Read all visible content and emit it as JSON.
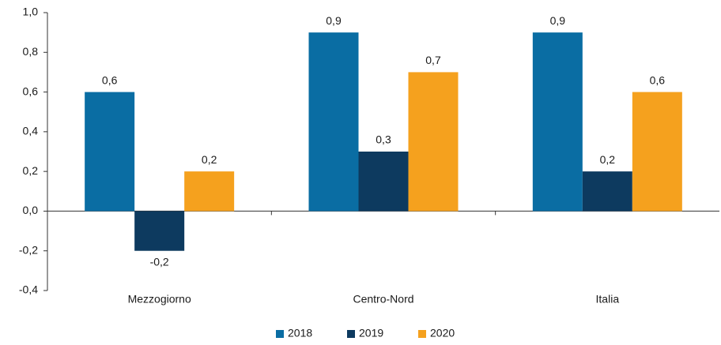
{
  "chart_data": {
    "type": "bar",
    "categories": [
      "Mezzogiorno",
      "Centro-Nord",
      "Italia"
    ],
    "series": [
      {
        "name": "2018",
        "color": "#0a6da3",
        "values": [
          0.6,
          0.9,
          0.9
        ],
        "value_labels": [
          "0,6",
          "0,9",
          "0,9"
        ]
      },
      {
        "name": "2019",
        "color": "#0d3a5f",
        "values": [
          -0.2,
          0.3,
          0.2
        ],
        "value_labels": [
          "-0,2",
          "0,3",
          "0,2"
        ]
      },
      {
        "name": "2020",
        "color": "#f5a11e",
        "values": [
          0.2,
          0.7,
          0.6
        ],
        "value_labels": [
          "0,2",
          "0,7",
          "0,6"
        ]
      }
    ],
    "ylim": [
      -0.4,
      1.0
    ],
    "yticks": [
      {
        "value": -0.4,
        "label": "-0,4"
      },
      {
        "value": -0.2,
        "label": "-0,2"
      },
      {
        "value": 0,
        "label": "0,0"
      },
      {
        "value": 0.2,
        "label": "0,2"
      },
      {
        "value": 0.4,
        "label": "0,4"
      },
      {
        "value": 0.6,
        "label": "0,6"
      },
      {
        "value": 0.8,
        "label": "0,8"
      },
      {
        "value": 1.0,
        "label": "1,0"
      }
    ],
    "grid": false,
    "legend": "bottom"
  }
}
